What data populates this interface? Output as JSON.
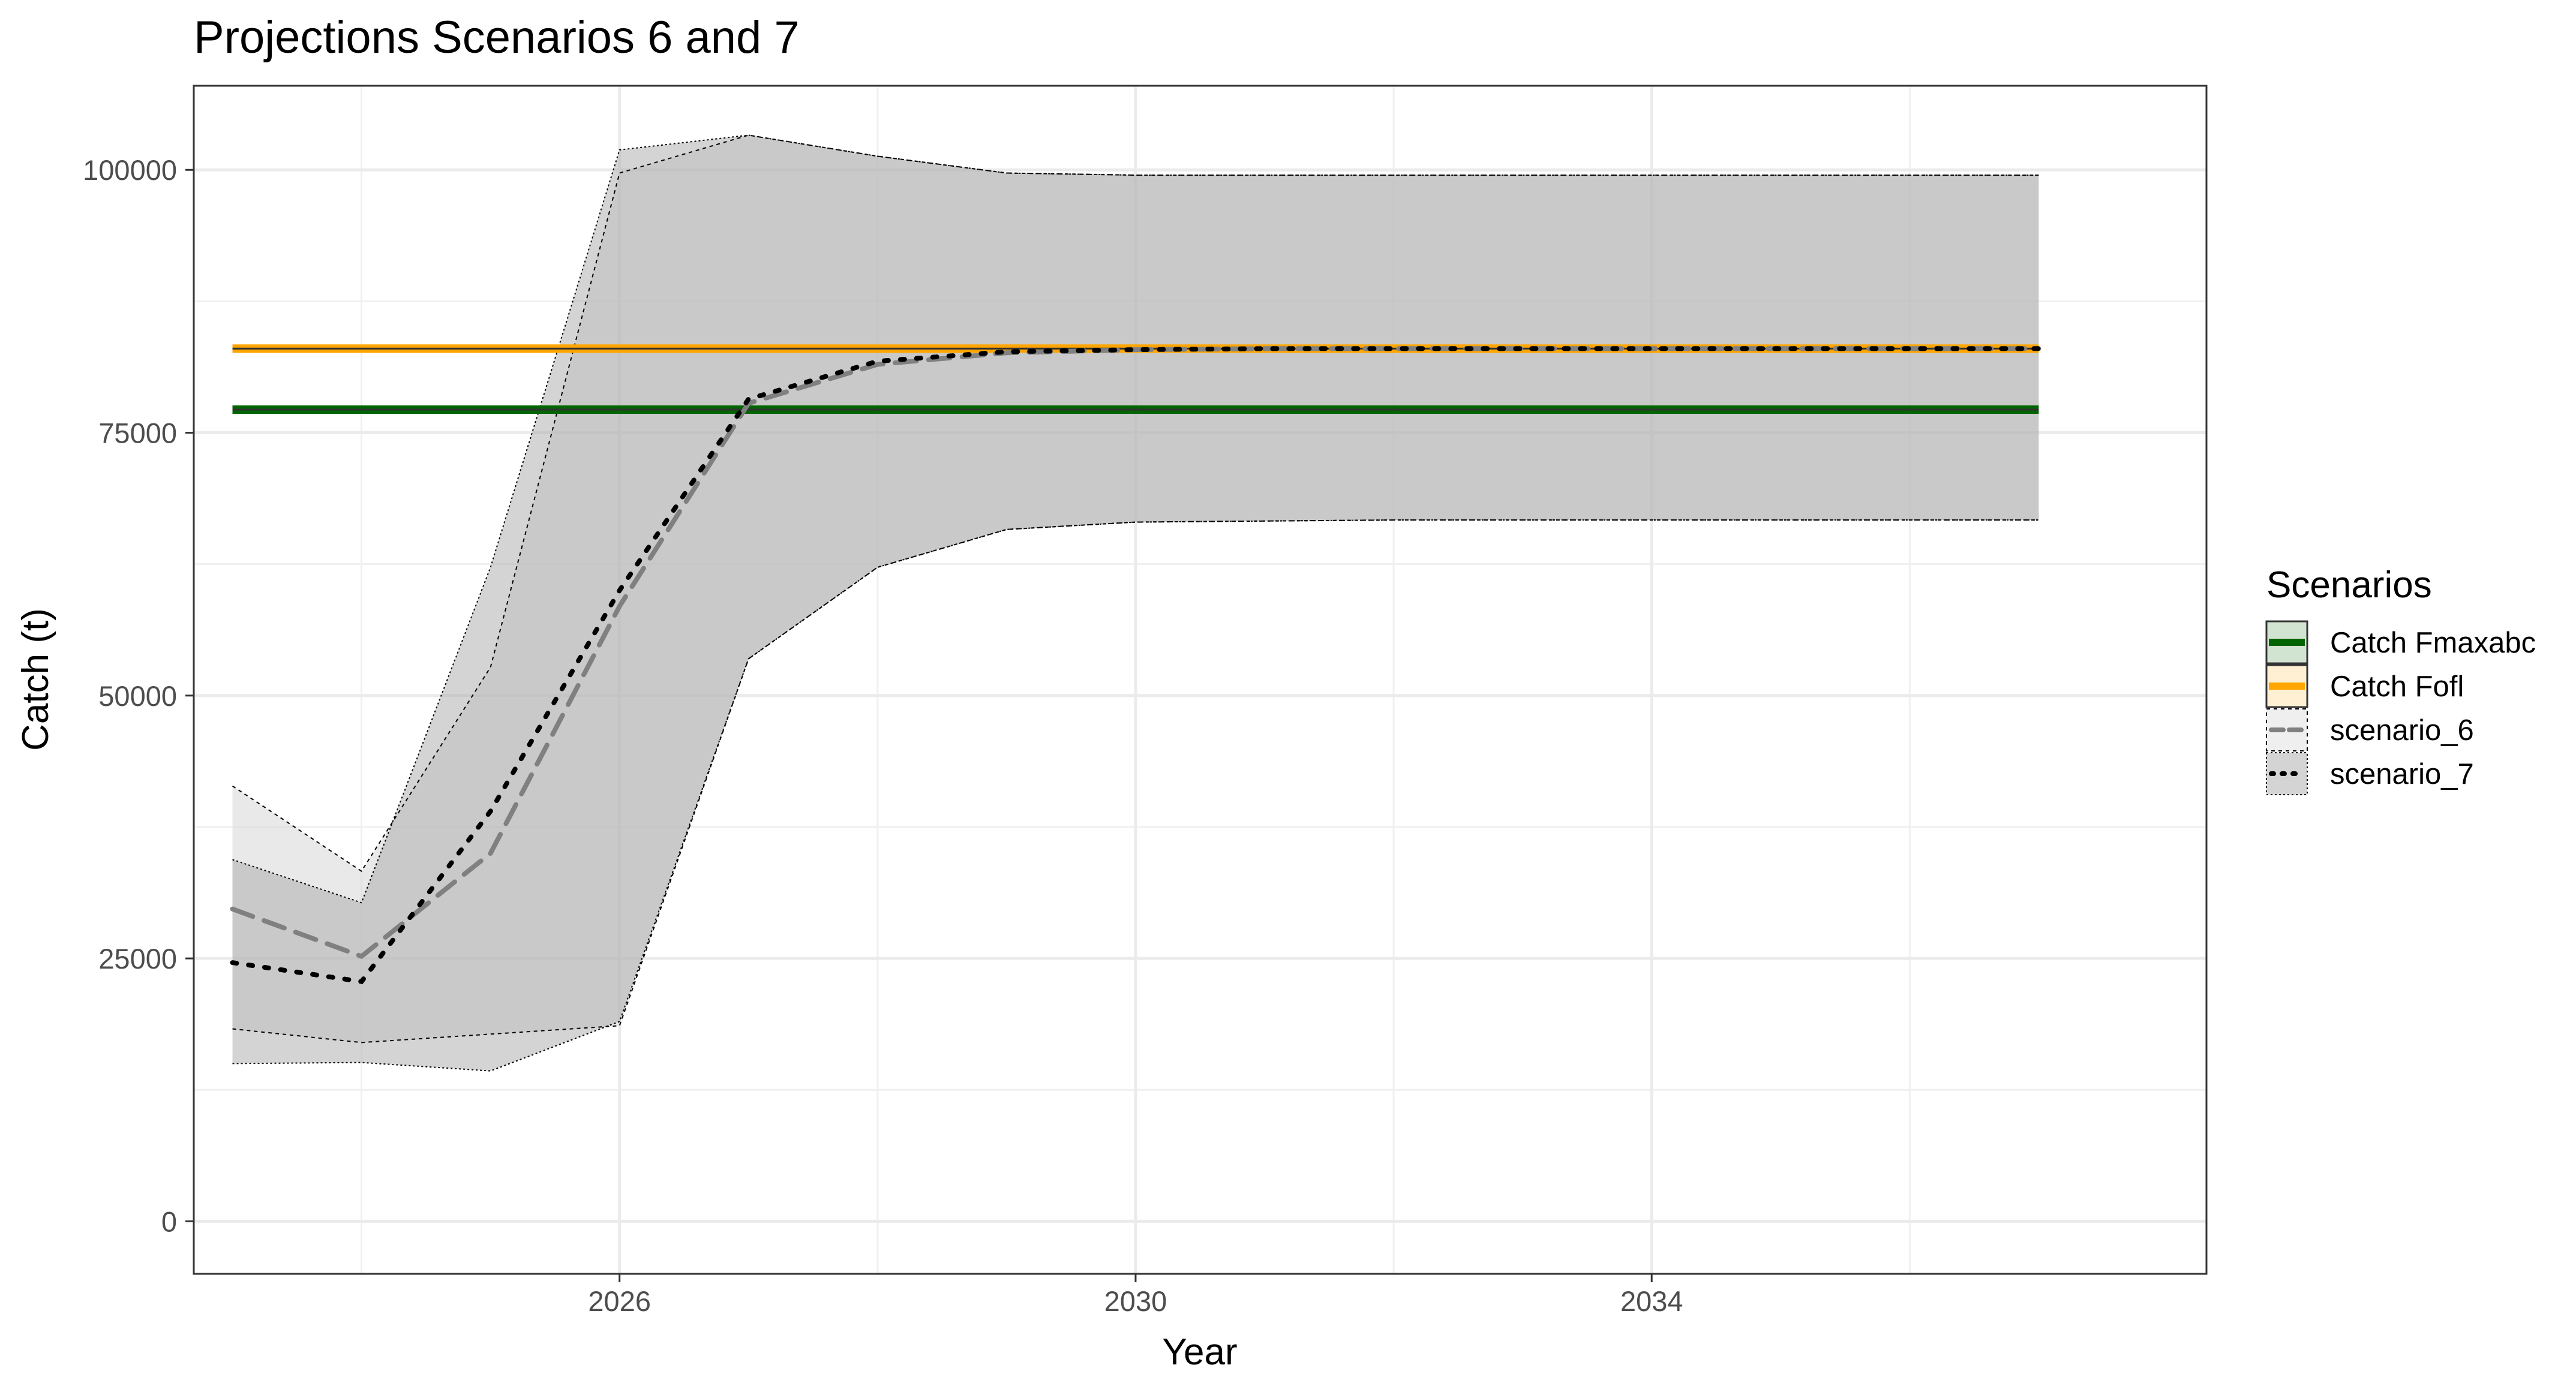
{
  "chart_data": {
    "type": "line",
    "title": "Projections Scenarios 6 and 7",
    "xlabel": "Year",
    "ylabel": "Catch (t)",
    "xlim": [
      2022.7,
      2038.3
    ],
    "ylim": [
      -5000,
      108000
    ],
    "x_ticks": [
      2026,
      2030,
      2034
    ],
    "x_minor": [
      2024,
      2028,
      2032,
      2036
    ],
    "y_ticks": [
      0,
      25000,
      50000,
      75000,
      100000
    ],
    "y_minor": [
      12500,
      37500,
      62500,
      87500
    ],
    "x": [
      2023,
      2024,
      2025,
      2026,
      2027,
      2028,
      2029,
      2030,
      2031,
      2032,
      2033,
      2034,
      2035,
      2036,
      2037
    ],
    "grid": true,
    "legend_position": "right",
    "legend_title": "Scenarios",
    "reference_lines": [
      {
        "name": "Catch Fmaxabc",
        "value": 77200,
        "color": "#006400"
      },
      {
        "name": "Catch Fofl",
        "value": 83000,
        "color": "#FFA500"
      }
    ],
    "series": [
      {
        "name": "scenario_6",
        "line_style": "dashed",
        "line_color": "#808080",
        "fill_color": "#d3d3d3",
        "values": [
          29700,
          25200,
          35000,
          58500,
          77800,
          81500,
          82600,
          82900,
          83000,
          83000,
          83000,
          83000,
          83000,
          83000,
          83000
        ],
        "lower": [
          18300,
          17000,
          17800,
          18600,
          53500,
          62200,
          65800,
          66500,
          66600,
          66700,
          66700,
          66700,
          66700,
          66700,
          66700
        ],
        "upper": [
          41400,
          33300,
          52700,
          99700,
          103300,
          101300,
          99700,
          99500,
          99500,
          99500,
          99500,
          99500,
          99500,
          99500,
          99500
        ]
      },
      {
        "name": "scenario_7",
        "line_style": "dotted",
        "line_color": "#000000",
        "fill_color": "#a9a9a9",
        "values": [
          24600,
          22800,
          39000,
          60000,
          78200,
          81800,
          82700,
          82900,
          83000,
          83000,
          83000,
          83000,
          83000,
          83000,
          83000
        ],
        "lower": [
          15000,
          15100,
          14300,
          19000,
          53500,
          62200,
          65800,
          66500,
          66600,
          66700,
          66700,
          66700,
          66700,
          66700,
          66700
        ],
        "upper": [
          34400,
          30300,
          62200,
          101900,
          103300,
          101300,
          99700,
          99500,
          99500,
          99500,
          99500,
          99500,
          99500,
          99500,
          99500
        ]
      }
    ]
  }
}
